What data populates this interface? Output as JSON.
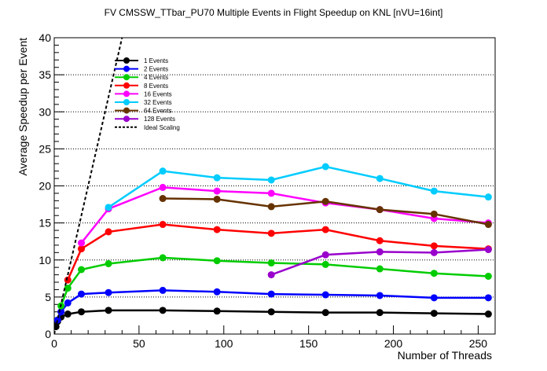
{
  "chart_data": {
    "type": "line",
    "title": "FV CMSSW_TTbar_PU70 Multiple Events in Flight Speedup on KNL [nVU=16int]",
    "xlabel": "Number of Threads",
    "ylabel": "Average Speedup per Event",
    "xlim": [
      0,
      260
    ],
    "ylim": [
      0,
      40
    ],
    "x_ticks": [
      0,
      50,
      100,
      150,
      200,
      250
    ],
    "y_ticks": [
      0,
      5,
      10,
      15,
      20,
      25,
      30,
      35,
      40
    ],
    "grid": "horizontal dotted",
    "legend_position": "top-left",
    "series": [
      {
        "name": "1 Events",
        "color": "#000000",
        "x": [
          1,
          2,
          4,
          8,
          16,
          32,
          64,
          96,
          128,
          160,
          192,
          224,
          256
        ],
        "y": [
          1.0,
          1.7,
          2.3,
          2.7,
          3.0,
          3.2,
          3.2,
          3.1,
          3.0,
          2.9,
          2.9,
          2.8,
          2.7
        ]
      },
      {
        "name": "2 Events",
        "color": "#0000ff",
        "x": [
          2,
          4,
          8,
          16,
          32,
          64,
          96,
          128,
          160,
          192,
          224,
          256
        ],
        "y": [
          1.9,
          3.0,
          4.2,
          5.4,
          5.6,
          5.9,
          5.7,
          5.4,
          5.3,
          5.2,
          4.9,
          4.9
        ]
      },
      {
        "name": "4 Events",
        "color": "#00cc00",
        "x": [
          4,
          8,
          16,
          32,
          64,
          96,
          128,
          160,
          192,
          224,
          256
        ],
        "y": [
          3.8,
          6.2,
          8.7,
          9.5,
          10.3,
          9.9,
          9.6,
          9.4,
          8.8,
          8.2,
          7.8
        ]
      },
      {
        "name": "8 Events",
        "color": "#ff0000",
        "x": [
          8,
          16,
          32,
          64,
          96,
          128,
          160,
          192,
          224,
          256
        ],
        "y": [
          7.3,
          11.5,
          13.8,
          14.8,
          14.1,
          13.6,
          14.1,
          12.6,
          11.9,
          11.5
        ]
      },
      {
        "name": "16 Events",
        "color": "#ff00ff",
        "x": [
          16,
          32,
          64,
          96,
          128,
          160,
          192,
          224,
          256
        ],
        "y": [
          12.3,
          16.9,
          19.8,
          19.3,
          19.0,
          17.7,
          16.8,
          15.6,
          15.0
        ]
      },
      {
        "name": "32 Events",
        "color": "#00ccff",
        "x": [
          32,
          64,
          96,
          128,
          160,
          192,
          224,
          256
        ],
        "y": [
          17.1,
          22.0,
          21.1,
          20.8,
          22.6,
          21.0,
          19.3,
          18.5
        ]
      },
      {
        "name": "64 Events",
        "color": "#663300",
        "x": [
          64,
          96,
          128,
          160,
          192,
          224,
          256
        ],
        "y": [
          18.3,
          18.2,
          17.2,
          17.9,
          16.8,
          16.2,
          14.8
        ]
      },
      {
        "name": "128 Events",
        "color": "#9900cc",
        "x": [
          128,
          160,
          192,
          224,
          256
        ],
        "y": [
          8.0,
          10.7,
          11.1,
          11.0,
          11.4
        ]
      },
      {
        "name": "Ideal Scaling",
        "color": "#000000",
        "style": "dashed",
        "marker": "none",
        "x": [
          0,
          40
        ],
        "y": [
          0,
          40
        ]
      }
    ]
  }
}
